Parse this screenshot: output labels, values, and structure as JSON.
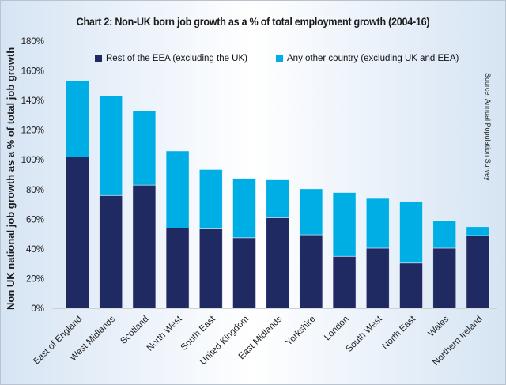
{
  "chart_data": {
    "type": "bar",
    "stacked": true,
    "title": "Chart 2: Non-UK born job growth as a % of total employment growth (2004-16)",
    "ylabel": "Non UK national job growth as a % of total job growth",
    "xlabel": "",
    "source": "Source: Annual Population Survey",
    "ylim": [
      0,
      180
    ],
    "yticks": [
      "0%",
      "20%",
      "40%",
      "60%",
      "80%",
      "100%",
      "120%",
      "140%",
      "160%",
      "180%"
    ],
    "grid": false,
    "legend_placement": "top",
    "categories": [
      "East of England",
      "West Midlands",
      "Scotland",
      "North West",
      "South East",
      "United Kingdom",
      "East Midlands",
      "Yorkshire",
      "London",
      "South West",
      "North East",
      "Wales",
      "Northern Ireland"
    ],
    "series": [
      {
        "name": "Rest of the EEA (excluding the UK)",
        "color": "#1f2a63",
        "values": [
          102,
          76,
          83,
          54,
          53.5,
          47.5,
          61,
          49.5,
          35,
          40.5,
          30.5,
          40.5,
          49
        ]
      },
      {
        "name": "Any other country (excluding UK and EEA)",
        "color": "#00aee6",
        "values": [
          51.5,
          67,
          50,
          52,
          40,
          40,
          25.5,
          31,
          43,
          33.5,
          41.5,
          18.5,
          6
        ]
      }
    ]
  }
}
